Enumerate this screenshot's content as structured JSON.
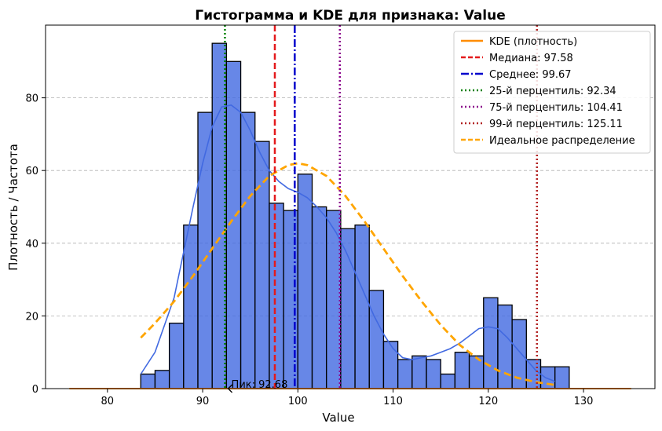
{
  "chart_data": {
    "type": "bar",
    "title": "Гистограмма и KDE для признака: Value",
    "xlabel": "Value",
    "ylabel": "Плотность / Частота",
    "xlim": [
      73.5,
      137.5
    ],
    "ylim": [
      0,
      100
    ],
    "xticks": [
      80,
      90,
      100,
      110,
      120,
      130
    ],
    "yticks": [
      0,
      20,
      40,
      60,
      80
    ],
    "grid": "y-dashed",
    "legend_position": "upper right",
    "colors": {
      "bars": "#4169E1",
      "kde": "#4169E1",
      "kde_legend": "#FF8C00",
      "median": "#E41A1C",
      "mean": "#0000CC",
      "p25": "#008000",
      "p75": "#8B008B",
      "p99": "#B22222",
      "ideal": "#FFA500"
    },
    "histogram": {
      "bin_edges": [
        83.5,
        85.0,
        86.5,
        88.0,
        89.5,
        91.0,
        92.5,
        94.0,
        95.5,
        97.0,
        98.5,
        100.0,
        101.5,
        103.0,
        104.5,
        106.0,
        107.5,
        109.0,
        110.5,
        112.0,
        113.5,
        115.0,
        116.5,
        118.0,
        119.5,
        121.0,
        122.5,
        124.0,
        125.5,
        127.0
      ],
      "counts": [
        4,
        5,
        18,
        45,
        76,
        95,
        90,
        76,
        68,
        51,
        49,
        59,
        50,
        49,
        44,
        45,
        27,
        13,
        8,
        9,
        8,
        4,
        10,
        9,
        25,
        23,
        19,
        8,
        6,
        6
      ]
    },
    "kde_curve": {
      "x": [
        83.5,
        85,
        87,
        89,
        90,
        91,
        92,
        93,
        94,
        95,
        96,
        97,
        98,
        99,
        100,
        101,
        102,
        103,
        104,
        105,
        106,
        107,
        108,
        109,
        110,
        111,
        112,
        113,
        114,
        115,
        116,
        117,
        118,
        119,
        120,
        121,
        122,
        123,
        124,
        125,
        126,
        127
      ],
      "y": [
        4,
        10,
        25,
        50,
        62,
        72,
        77.5,
        78,
        76,
        71,
        65,
        60,
        57,
        55,
        54,
        52.5,
        50,
        47,
        43,
        38,
        32,
        26,
        20,
        15,
        11,
        8.5,
        8,
        8.5,
        9,
        10,
        11,
        12.5,
        14.5,
        16.5,
        17,
        16.5,
        14,
        11,
        8,
        5,
        3,
        2
      ]
    },
    "ideal_curve": {
      "x": [
        83.5,
        85,
        87,
        89,
        91,
        93,
        95,
        97,
        99,
        100,
        101,
        103,
        105,
        107,
        109,
        111,
        113,
        115,
        117,
        119,
        121,
        123,
        125,
        127
      ],
      "y": [
        14,
        18,
        24,
        31,
        38.5,
        46,
        53,
        58.5,
        61.5,
        62,
        61.5,
        58.5,
        53,
        46,
        38.5,
        31,
        24,
        17.5,
        12,
        8,
        5,
        3,
        1.8,
        1
      ]
    },
    "kde_baseline": {
      "x_start": 76,
      "x_end": 135,
      "y": 0
    },
    "vertical_lines": [
      {
        "key": "median",
        "x": 97.58,
        "label": "Медиана: 97.58",
        "style": "dashed"
      },
      {
        "key": "mean",
        "x": 99.67,
        "label": "Среднее: 99.67",
        "style": "dashdot"
      },
      {
        "key": "p25",
        "x": 92.34,
        "label": "25-й перцентиль: 92.34",
        "style": "dotted"
      },
      {
        "key": "p75",
        "x": 104.41,
        "label": "75-й перцентиль: 104.41",
        "style": "dotted"
      },
      {
        "key": "p99",
        "x": 125.11,
        "label": "99-й перцентиль: 125.11",
        "style": "dotted"
      }
    ],
    "legend": [
      {
        "key": "kde_legend",
        "label": "KDE (плотность)",
        "style": "solid"
      },
      {
        "key": "median",
        "label": "Медиана: 97.58",
        "style": "dashed"
      },
      {
        "key": "mean",
        "label": "Среднее: 99.67",
        "style": "dashdot"
      },
      {
        "key": "p25",
        "label": "25-й перцентиль: 92.34",
        "style": "dotted"
      },
      {
        "key": "p75",
        "label": "75-й перцентиль: 104.41",
        "style": "dotted"
      },
      {
        "key": "p99",
        "label": "99-й перцентиль: 125.11",
        "style": "dotted"
      },
      {
        "key": "ideal",
        "label": "Идеальное распределение",
        "style": "dashed"
      }
    ],
    "annotation": {
      "text": "Пик: 92.68",
      "x": 92.68,
      "y": 0
    }
  }
}
